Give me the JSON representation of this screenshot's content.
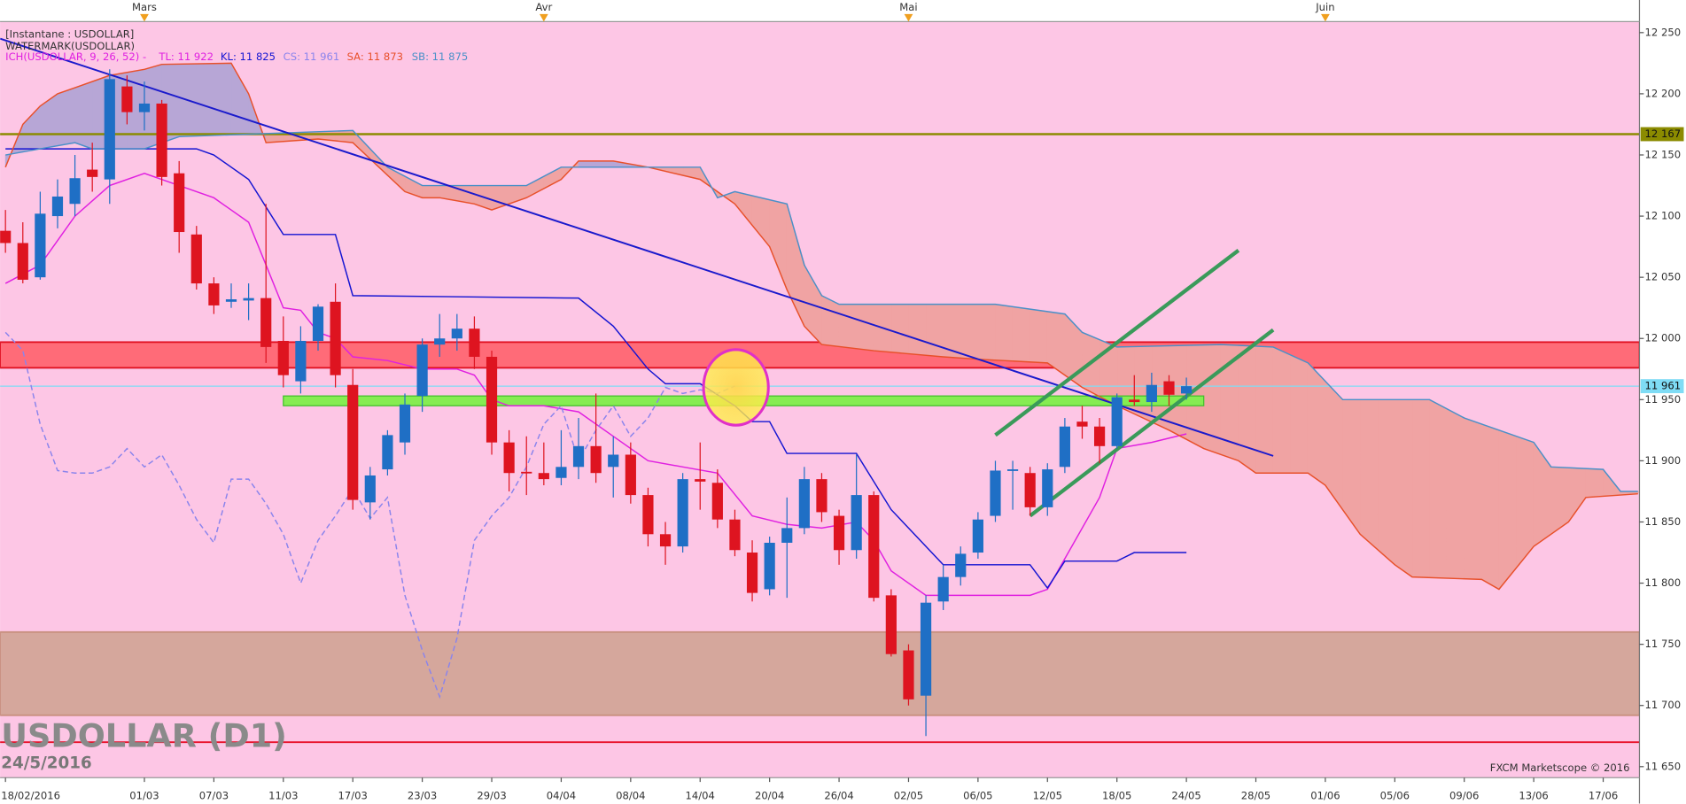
{
  "chart_data": {
    "type": "candlestick",
    "header": [
      "[Instantane : USDOLLAR]",
      "WATERMARK(USDOLLAR)"
    ],
    "indicator_label": "ICH(USDOLLAR, 9, 26, 52) -",
    "title": "USDOLLAR (D1)",
    "subtitle": "24/5/2016",
    "credit": "FXCM Marketscope © 2016",
    "categories": [
      "18/02/2016",
      null,
      null,
      null,
      null,
      null,
      null,
      null,
      "01/03",
      null,
      null,
      null,
      "07/03",
      null,
      null,
      null,
      "11/03",
      null,
      null,
      null,
      "17/03",
      null,
      null,
      null,
      "23/03",
      null,
      null,
      null,
      "29/03",
      null,
      null,
      null,
      "04/04",
      null,
      null,
      null,
      "08/04",
      null,
      null,
      null,
      "14/04",
      null,
      null,
      null,
      "20/04",
      null,
      null,
      null,
      "26/04",
      null,
      null,
      null,
      "02/05",
      null,
      null,
      null,
      "06/05",
      null,
      null,
      null,
      "12/05",
      null,
      null,
      null,
      "18/05",
      null,
      null,
      null,
      "24/05",
      null,
      null,
      null,
      "28/05",
      null,
      null,
      null,
      "01/06",
      null,
      null,
      null,
      "05/06",
      null,
      null,
      null,
      "09/06",
      null,
      null,
      null,
      "13/06",
      null,
      null,
      null,
      "17/06",
      null,
      null
    ],
    "months": [
      {
        "label": "Mars",
        "index": 8
      },
      {
        "label": "Avr",
        "index": 31
      },
      {
        "label": "Mai",
        "index": 52
      },
      {
        "label": "Juin",
        "index": 76
      }
    ],
    "open": [
      12088,
      12078,
      12050,
      12100,
      12110,
      12138,
      12130,
      12206,
      12185,
      12192,
      12135,
      12085,
      12045,
      12030,
      12031,
      12033,
      11998,
      11965,
      11998,
      12030,
      11962,
      11866,
      11893,
      11915,
      11953,
      11995,
      12000,
      12008,
      11985,
      11915,
      11891,
      11890,
      11886,
      11895,
      11912,
      11895,
      11905,
      11872,
      11840,
      11830,
      11885,
      11882,
      11852,
      11825,
      11795,
      11833,
      11845,
      11885,
      11855,
      11827,
      11872,
      11790,
      11745,
      11708,
      11785,
      11805,
      11825,
      11855,
      11892,
      11890,
      11862,
      11895,
      11932,
      11928,
      11912,
      11950,
      11948,
      11965,
      11955,
      null,
      null,
      null,
      null,
      null,
      null,
      null,
      null,
      null,
      null,
      null,
      null,
      null,
      null,
      null,
      null,
      null,
      null,
      null,
      null,
      null,
      null,
      null,
      null,
      null,
      null
    ],
    "high": [
      12105,
      12095,
      12120,
      12130,
      12150,
      12160,
      12220,
      12215,
      12210,
      12195,
      12145,
      12092,
      12050,
      12045,
      12045,
      12110,
      12018,
      12010,
      12028,
      12045,
      11975,
      11895,
      11925,
      11955,
      12000,
      12020,
      12020,
      12018,
      11990,
      11925,
      11920,
      11915,
      11925,
      11935,
      11955,
      11920,
      11915,
      11878,
      11850,
      11890,
      11915,
      11893,
      11860,
      11835,
      11838,
      11870,
      11895,
      11890,
      11860,
      11905,
      11875,
      11795,
      11750,
      11790,
      11815,
      11830,
      11858,
      11900,
      11900,
      11895,
      11898,
      11935,
      11945,
      11935,
      11955,
      11970,
      11972,
      11970,
      11968,
      null,
      null,
      null,
      null,
      null,
      null,
      null,
      null,
      null,
      null,
      null,
      null,
      null,
      null,
      null,
      null,
      null,
      null,
      null,
      null,
      null,
      null,
      null,
      null,
      null,
      null
    ],
    "low": [
      12070,
      12045,
      12048,
      12090,
      12100,
      12120,
      12110,
      12175,
      12170,
      12125,
      12070,
      12040,
      12020,
      12025,
      12015,
      11980,
      11960,
      11955,
      11990,
      11960,
      11860,
      11852,
      11888,
      11905,
      11940,
      11985,
      11990,
      11975,
      11905,
      11875,
      11872,
      11880,
      11880,
      11885,
      11882,
      11870,
      11865,
      11830,
      11815,
      11825,
      11860,
      11845,
      11822,
      11785,
      11790,
      11788,
      11840,
      11850,
      11815,
      11820,
      11785,
      11740,
      11700,
      11675,
      11778,
      11798,
      11820,
      11850,
      11860,
      11855,
      11855,
      11890,
      11918,
      11898,
      11910,
      11945,
      11940,
      11945,
      11950,
      null,
      null,
      null,
      null,
      null,
      null,
      null,
      null,
      null,
      null,
      null,
      null,
      null,
      null,
      null,
      null,
      null,
      null,
      null,
      null,
      null,
      null,
      null,
      null,
      null,
      null
    ],
    "close": [
      12078,
      12048,
      12102,
      12116,
      12131,
      12132,
      12212,
      12185,
      12192,
      12132,
      12087,
      12045,
      12027,
      12032,
      12033,
      11993,
      11970,
      11998,
      12026,
      11970,
      11868,
      11888,
      11921,
      11946,
      11995,
      12000,
      12008,
      11985,
      11915,
      11890,
      11890,
      11885,
      11895,
      11912,
      11890,
      11905,
      11872,
      11840,
      11830,
      11885,
      11883,
      11852,
      11827,
      11792,
      11833,
      11845,
      11885,
      11858,
      11827,
      11872,
      11788,
      11742,
      11705,
      11784,
      11805,
      11824,
      11852,
      11892,
      11893,
      11862,
      11893,
      11928,
      11928,
      11912,
      11952,
      11948,
      11962,
      11954,
      11961,
      null,
      null,
      null,
      null,
      null,
      null,
      null,
      null,
      null,
      null,
      null,
      null,
      null,
      null,
      null,
      null,
      null,
      null,
      null,
      null,
      null,
      null,
      null,
      null,
      null,
      null
    ],
    "up_color": "#1f6fc5",
    "down_color": "#de1420",
    "series": [
      {
        "name": "TL: 11 922",
        "color": "#e020e0",
        "dashed": false,
        "x": [
          0,
          2,
          4,
          6,
          8,
          10,
          12,
          14,
          15,
          16,
          17,
          18,
          19,
          20,
          22,
          24,
          26,
          27,
          28,
          29,
          31,
          33,
          35,
          37,
          39,
          41,
          43,
          45,
          47,
          49,
          50,
          51,
          53,
          55,
          59,
          60,
          61,
          63,
          64,
          66,
          68
        ],
        "values": [
          12045,
          12060,
          12100,
          12125,
          12135,
          12125,
          12115,
          12095,
          12060,
          12025,
          12023,
          12005,
          12000,
          11985,
          11982,
          11975,
          11975,
          11970,
          11950,
          11945,
          11945,
          11940,
          11920,
          11900,
          11895,
          11890,
          11855,
          11848,
          11845,
          11850,
          11835,
          11810,
          11790,
          11790,
          11790,
          11795,
          11820,
          11870,
          11910,
          11915,
          11922
        ]
      },
      {
        "name": "KL: 11 825",
        "color": "#1414d2",
        "dashed": false,
        "x": [
          0,
          11,
          12,
          14,
          16,
          19,
          20,
          33,
          35,
          37,
          38,
          40,
          42,
          43,
          44,
          45,
          49,
          51,
          54,
          59,
          60,
          61,
          64,
          65,
          68
        ],
        "values": [
          12155,
          12155,
          12150,
          12130,
          12085,
          12085,
          12035,
          12033,
          12010,
          11975,
          11963,
          11963,
          11945,
          11932,
          11932,
          11906,
          11906,
          11860,
          11815,
          11815,
          11796,
          11818,
          11818,
          11825,
          11825
        ]
      },
      {
        "name": "CS: 11 961",
        "color": "#8a84ec",
        "dashed": true,
        "x": [
          0,
          1,
          2,
          3,
          4,
          5,
          6,
          7,
          8,
          9,
          10,
          11,
          12,
          13,
          14,
          15,
          16,
          17,
          18,
          19,
          20,
          21,
          22,
          23,
          24,
          25,
          26,
          27,
          28,
          29,
          30,
          31,
          32,
          33,
          34,
          35,
          36,
          37,
          38,
          39,
          40,
          41,
          42
        ],
        "values": [
          12005,
          11990,
          11930,
          11892,
          11890,
          11890,
          11895,
          11910,
          11895,
          11905,
          11880,
          11852,
          11833,
          11885,
          11885,
          11865,
          11840,
          11800,
          11835,
          11855,
          11877,
          11853,
          11870,
          11790,
          11745,
          11707,
          11755,
          11835,
          11855,
          11870,
          11895,
          11930,
          11945,
          11900,
          11925,
          11945,
          11920,
          11935,
          11960,
          11955,
          11958,
          11955,
          11961
        ]
      },
      {
        "name": "SA: 11 873",
        "color": "#e8502a",
        "dashed": false,
        "x": [
          0,
          1,
          2,
          3,
          4,
          6,
          8,
          9,
          13,
          14,
          15,
          18,
          20,
          23,
          24,
          25,
          27,
          28,
          30,
          32,
          33,
          35,
          37,
          40,
          42,
          44,
          45,
          46,
          47,
          50,
          54,
          56,
          60,
          62,
          64,
          67,
          69,
          71,
          72,
          75,
          76,
          78,
          80,
          81,
          85,
          86,
          88,
          89,
          90,
          91,
          94
        ],
        "values": [
          12140,
          12175,
          12190,
          12200,
          12205,
          12215,
          12220,
          12224,
          12225,
          12200,
          12160,
          12163,
          12160,
          12120,
          12115,
          12115,
          12110,
          12105,
          12115,
          12130,
          12145,
          12145,
          12140,
          12130,
          12110,
          12075,
          12040,
          12010,
          11995,
          11990,
          11985,
          11983,
          11980,
          11960,
          11945,
          11925,
          11910,
          11900,
          11890,
          11890,
          11880,
          11840,
          11815,
          11805,
          11803,
          11795,
          11830,
          11840,
          11850,
          11870,
          11873
        ]
      },
      {
        "name": "SB: 11 875",
        "color": "#4a90c8",
        "dashed": false,
        "x": [
          0,
          2,
          4,
          5,
          8,
          10,
          20,
          22,
          24,
          30,
          32,
          37,
          40,
          41,
          42,
          45,
          46,
          47,
          48,
          57,
          61,
          62,
          64,
          70,
          73,
          75,
          77,
          82,
          84,
          88,
          89,
          92,
          93,
          94
        ],
        "values": [
          12150,
          12155,
          12160,
          12155,
          12155,
          12165,
          12170,
          12140,
          12125,
          12125,
          12140,
          12140,
          12140,
          12115,
          12120,
          12110,
          12060,
          12035,
          12028,
          12028,
          12020,
          12005,
          11993,
          11995,
          11993,
          11980,
          11950,
          11950,
          11935,
          11915,
          11895,
          11893,
          11875,
          11875
        ]
      }
    ],
    "cloud_colors": [
      "#b7a6d6",
      "#f0a3a3"
    ],
    "ylim": [
      11641,
      12259
    ],
    "yticks": [
      {
        "value": 11650,
        "label": "11 650"
      },
      {
        "value": 11700,
        "label": "11 700"
      },
      {
        "value": 11750,
        "label": "11 750"
      },
      {
        "value": 11800,
        "label": "11 800"
      },
      {
        "value": 11850,
        "label": "11 850"
      },
      {
        "value": 11900,
        "label": "11 900"
      },
      {
        "value": 11950,
        "label": "11 950"
      },
      {
        "value": 12000,
        "label": "12 000"
      },
      {
        "value": 12050,
        "label": "12 050"
      },
      {
        "value": 12100,
        "label": "12 100"
      },
      {
        "value": 12150,
        "label": "12 150"
      },
      {
        "value": 12200,
        "label": "12 200"
      },
      {
        "value": 12250,
        "label": "12 250"
      }
    ],
    "levels": [
      {
        "value": 12167,
        "label": "12 167",
        "color": "#8b8b00",
        "width": 2
      },
      {
        "value": 11961,
        "label": "11 961",
        "color": "#7fdcf5",
        "width": 1
      }
    ],
    "zones": [
      {
        "from": 11976,
        "to": 11997,
        "color": "#ff6b78",
        "border": "#e01020"
      },
      {
        "from": 11692,
        "to": 11760,
        "color": "#d5a79c",
        "border": "#c8907f"
      }
    ],
    "support_zone": {
      "x": [
        16,
        69
      ],
      "from": 11945,
      "to": 11953,
      "color": "#86ec52",
      "border": "#3fbf2a"
    },
    "floor_line": {
      "value": 11670,
      "color": "#e8102a"
    },
    "trendlines": [
      {
        "x": [
          -0.3,
          73
        ],
        "values": [
          12245,
          11904
        ],
        "color": "#1a1acc",
        "width": 1.6
      },
      {
        "x": [
          57,
          71
        ],
        "values": [
          11921,
          12072
        ],
        "color": "#3a9a5a",
        "width": 3.5
      },
      {
        "x": [
          59,
          73
        ],
        "values": [
          11855,
          12007
        ],
        "color": "#3a9a5a",
        "width": 3.5
      }
    ],
    "highlight": {
      "x": 42,
      "value": 11960,
      "color": "#e030c8"
    },
    "background": "#fdc6e5"
  }
}
